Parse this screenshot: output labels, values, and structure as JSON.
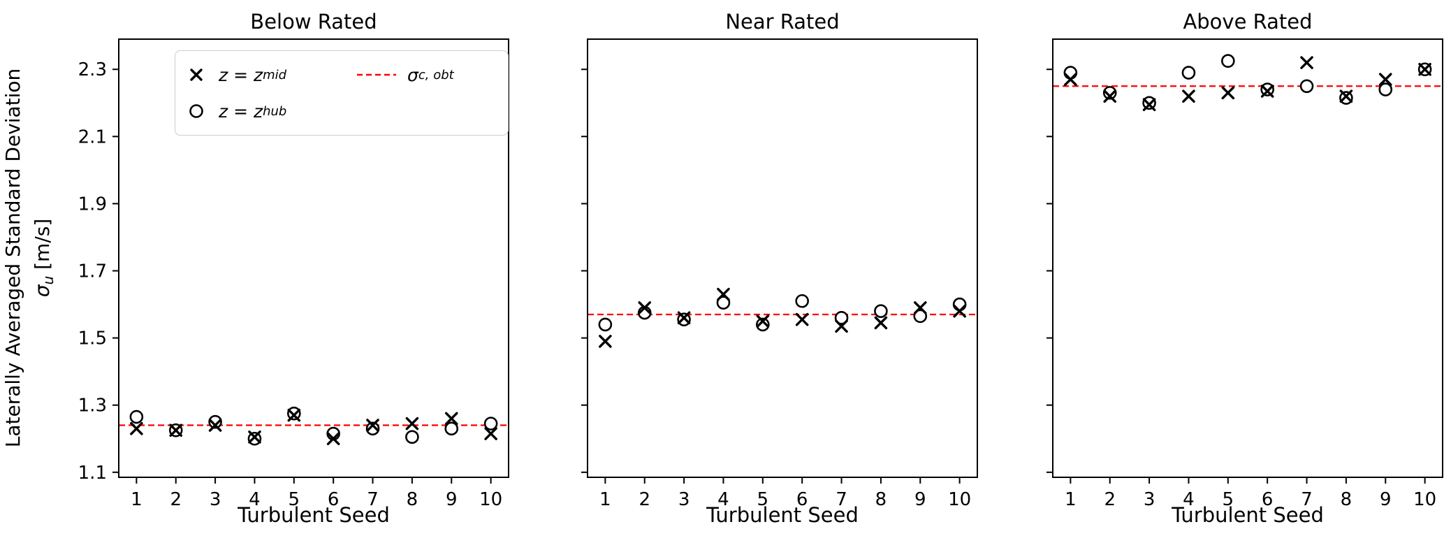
{
  "figure": {
    "ylabel": {
      "line1": "Laterally Averaged Standard Deviation",
      "sigma": "σ",
      "sub": "u",
      "units": " [m/s]"
    },
    "legend": {
      "line_color": "#ff0000",
      "marker_color": "#000000",
      "entries": [
        {
          "marker": "x",
          "main": "z = z",
          "sub": "mid"
        },
        {
          "marker": "o",
          "main": "z = z",
          "sub": "hub"
        },
        {
          "marker": "dashed-line",
          "main": "σ",
          "sub": "c, obt"
        }
      ]
    }
  },
  "chart_data": [
    {
      "type": "scatter",
      "title": "Below Rated",
      "xlabel": "Turbulent Seed",
      "ylabel": "Laterally Averaged Standard Deviation σ_u [m/s]",
      "x": [
        1,
        2,
        3,
        4,
        5,
        6,
        7,
        8,
        9,
        10
      ],
      "series": [
        {
          "name": "z = z_mid",
          "marker": "x",
          "color": "#000000",
          "values": [
            1.23,
            1.225,
            1.24,
            1.205,
            1.27,
            1.2,
            1.24,
            1.245,
            1.26,
            1.215
          ]
        },
        {
          "name": "z = z_hub",
          "marker": "o",
          "color": "#000000",
          "values": [
            1.265,
            1.225,
            1.25,
            1.2,
            1.275,
            1.215,
            1.23,
            1.205,
            1.23,
            1.245
          ]
        }
      ],
      "ref_line": {
        "label": "σ_c,obt",
        "value": 1.24,
        "color": "#ff0000",
        "style": "dashed"
      },
      "xlim": [
        0.55,
        10.45
      ],
      "ylim": [
        1.085,
        2.39
      ],
      "yticks": [
        1.1,
        1.3,
        1.5,
        1.7,
        1.9,
        2.1,
        2.3
      ],
      "xticks": [
        1,
        2,
        3,
        4,
        5,
        6,
        7,
        8,
        9,
        10
      ],
      "show_y_tick_labels": true,
      "grid": false,
      "legend_position": "upper left (first subplot only)"
    },
    {
      "type": "scatter",
      "title": "Near Rated",
      "xlabel": "Turbulent Seed",
      "x": [
        1,
        2,
        3,
        4,
        5,
        6,
        7,
        8,
        9,
        10
      ],
      "series": [
        {
          "name": "z = z_mid",
          "marker": "x",
          "color": "#000000",
          "values": [
            1.49,
            1.59,
            1.56,
            1.63,
            1.55,
            1.555,
            1.535,
            1.545,
            1.59,
            1.58
          ]
        },
        {
          "name": "z = z_hub",
          "marker": "o",
          "color": "#000000",
          "values": [
            1.54,
            1.575,
            1.555,
            1.605,
            1.54,
            1.61,
            1.56,
            1.58,
            1.565,
            1.6
          ]
        }
      ],
      "ref_line": {
        "label": "σ_c,obt",
        "value": 1.57,
        "color": "#ff0000",
        "style": "dashed"
      },
      "xlim": [
        0.55,
        10.45
      ],
      "ylim": [
        1.085,
        2.39
      ],
      "yticks": [
        1.1,
        1.3,
        1.5,
        1.7,
        1.9,
        2.1,
        2.3
      ],
      "xticks": [
        1,
        2,
        3,
        4,
        5,
        6,
        7,
        8,
        9,
        10
      ],
      "show_y_tick_labels": false,
      "grid": false
    },
    {
      "type": "scatter",
      "title": "Above Rated",
      "xlabel": "Turbulent Seed",
      "x": [
        1,
        2,
        3,
        4,
        5,
        6,
        7,
        8,
        9,
        10
      ],
      "series": [
        {
          "name": "z = z_mid",
          "marker": "x",
          "color": "#000000",
          "values": [
            2.27,
            2.22,
            2.195,
            2.22,
            2.23,
            2.235,
            2.32,
            2.22,
            2.27,
            2.3
          ]
        },
        {
          "name": "z = z_hub",
          "marker": "o",
          "color": "#000000",
          "values": [
            2.29,
            2.23,
            2.2,
            2.29,
            2.325,
            2.24,
            2.25,
            2.215,
            2.24,
            2.3
          ]
        }
      ],
      "ref_line": {
        "label": "σ_c,obt",
        "value": 2.25,
        "color": "#ff0000",
        "style": "dashed"
      },
      "xlim": [
        0.55,
        10.45
      ],
      "ylim": [
        1.085,
        2.39
      ],
      "yticks": [
        1.1,
        1.3,
        1.5,
        1.7,
        1.9,
        2.1,
        2.3
      ],
      "xticks": [
        1,
        2,
        3,
        4,
        5,
        6,
        7,
        8,
        9,
        10
      ],
      "show_y_tick_labels": false,
      "grid": false
    }
  ]
}
